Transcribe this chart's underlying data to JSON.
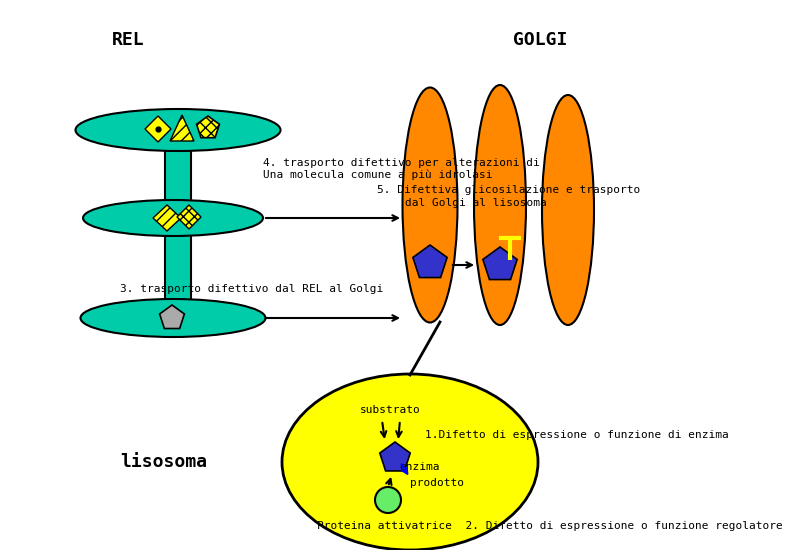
{
  "title_rel": "REL",
  "title_golgi": "GOLGI",
  "bg_color": "#ffffff",
  "rel_color": "#00ccaa",
  "golgi_color": "#ff8800",
  "yellow": "#ffff00",
  "blue_pentagon": "#3333cc",
  "gray_pentagon": "#aaaaaa",
  "green_circle_color": "#66ee66",
  "text_color": "#000000",
  "text4a": "4. trasporto difettivo per alterazioni di",
  "text4b": "Una molecula comune a più idrolasi",
  "text5a": "5. Difettiva glicosilazione e trasporto",
  "text5b": "dal Golgi al lisosoma",
  "text3": "3. trasporto difettivo dal REL al Golgi",
  "text_lisosoma": "lisosoma",
  "text_substrato": "substrato",
  "text_enzima": "enzima",
  "text_prodotto": "prodotto",
  "text1": "1.Difetto di espressione o funzione di enzima",
  "text2": "2. Difetto di espressione o funzione regolatore",
  "text_proteina": "Proteina attivatrice"
}
